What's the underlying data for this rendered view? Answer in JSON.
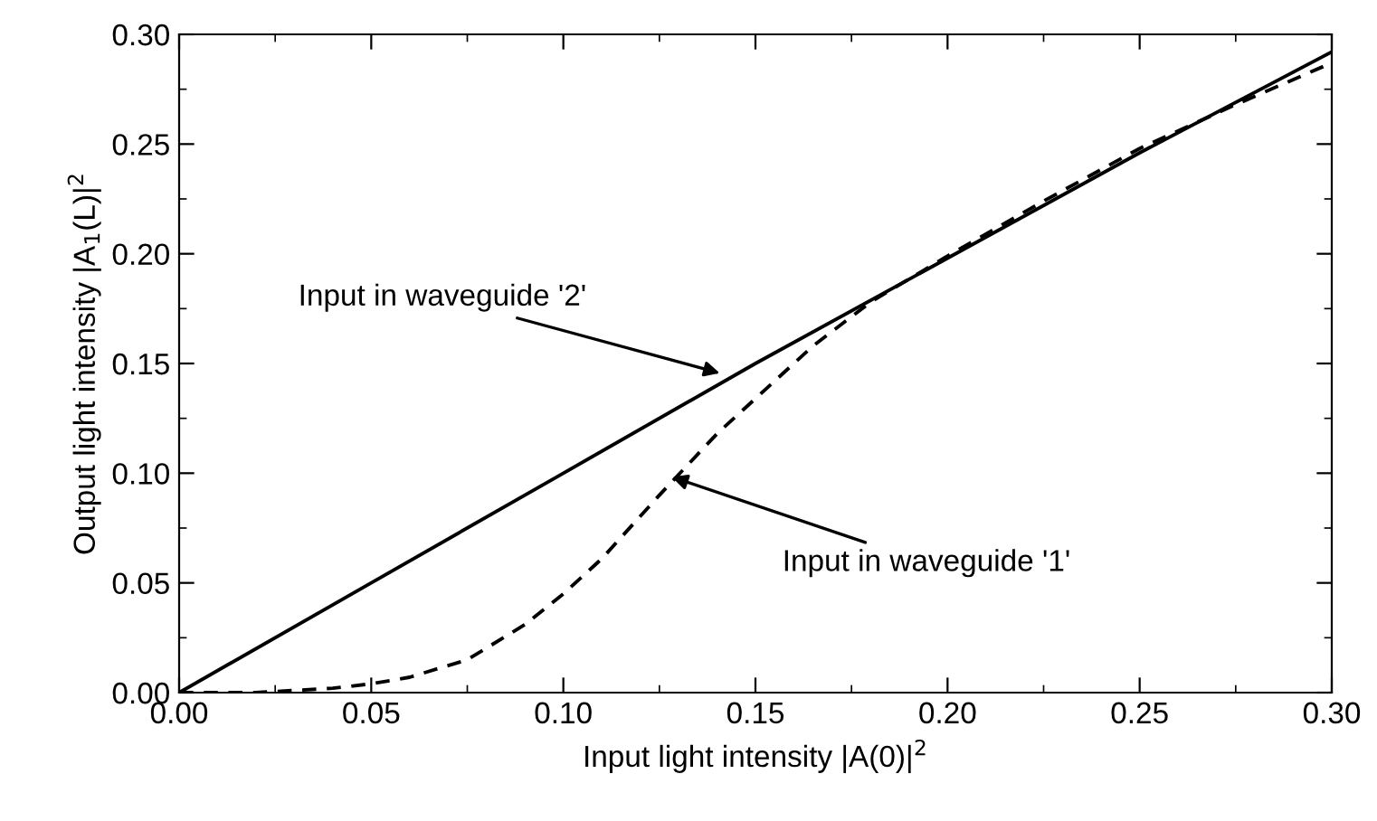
{
  "chart_data": {
    "type": "line",
    "xlabel": "Input light intensity |A(0)|$^{2}$",
    "ylabel": "Output light intensity |A$_{1}$(L)|$^{2}$",
    "xlim": [
      0,
      0.3
    ],
    "ylim": [
      0,
      0.3
    ],
    "xticks": [
      {
        "value": 0,
        "label": "0.00"
      },
      {
        "value": 0.05,
        "label": "0.05"
      },
      {
        "value": 0.1,
        "label": "0.10"
      },
      {
        "value": 0.15,
        "label": "0.15"
      },
      {
        "value": 0.2,
        "label": "0.20"
      },
      {
        "value": 0.25,
        "label": "0.25"
      },
      {
        "value": 0.3,
        "label": "0.30"
      }
    ],
    "yticks": [
      {
        "value": 0,
        "label": "0.00"
      },
      {
        "value": 0.05,
        "label": "0.05"
      },
      {
        "value": 0.1,
        "label": "0.10"
      },
      {
        "value": 0.15,
        "label": "0.15"
      },
      {
        "value": 0.2,
        "label": "0.20"
      },
      {
        "value": 0.25,
        "label": "0.25"
      },
      {
        "value": 0.3,
        "label": "0.30"
      }
    ],
    "grid": false,
    "legend": false,
    "marker": "none",
    "series": [
      {
        "color": "#000000",
        "line_style": "solid",
        "x": [
          0,
          0.05,
          0.1,
          0.15,
          0.2,
          0.25,
          0.3
        ],
        "values": [
          0,
          0.05,
          0.1,
          0.15,
          0.198,
          0.246,
          0.292
        ]
      },
      {
        "color": "#000000",
        "line_style": "dashed",
        "x": [
          0,
          0.02,
          0.03,
          0.04,
          0.05,
          0.06,
          0.075,
          0.09,
          0.1,
          0.11,
          0.125,
          0.14,
          0.15,
          0.165,
          0.18,
          0.2,
          0.225,
          0.25,
          0.275,
          0.3
        ],
        "values": [
          0,
          0,
          0.001,
          0.002,
          0.004,
          0.007,
          0.015,
          0.031,
          0.045,
          0.061,
          0.09,
          0.118,
          0.134,
          0.158,
          0.178,
          0.199,
          0.224,
          0.248,
          0.268,
          0.287
        ]
      }
    ],
    "annotations": [
      {
        "text": "Input in waveguide '2'",
        "x": 0.142,
        "y": 0.145
      },
      {
        "text": "Input in waveguide '1'",
        "x": 0.127,
        "y": 0.099
      }
    ]
  }
}
